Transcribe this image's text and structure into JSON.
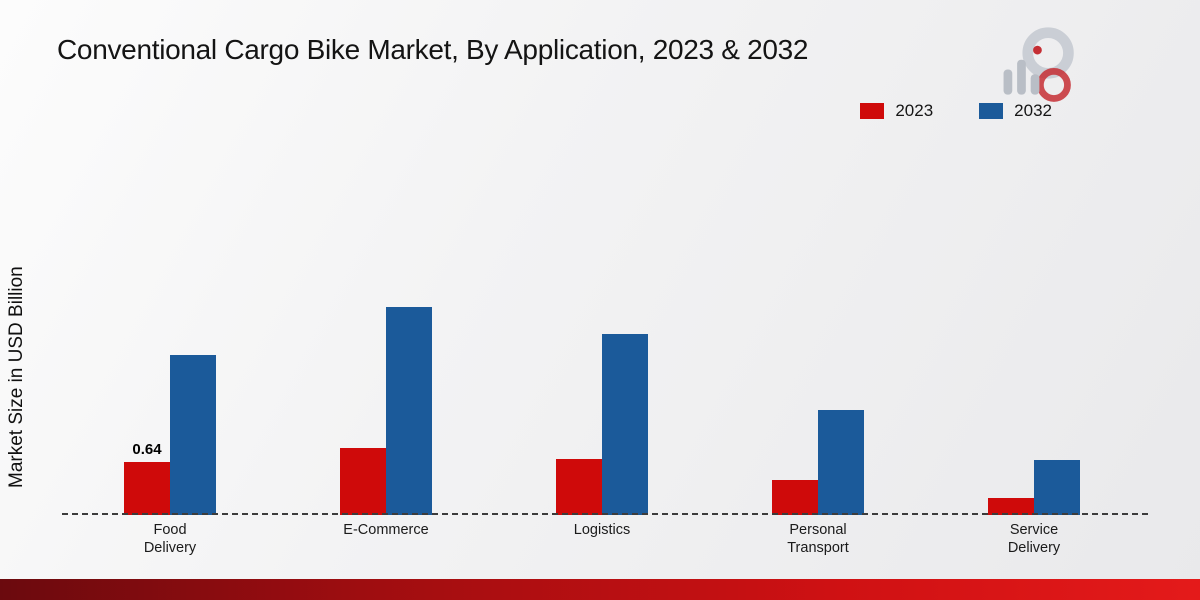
{
  "page": {
    "title": "Conventional Cargo Bike Market, By Application, 2023 & 2032"
  },
  "chart_data": {
    "type": "bar",
    "title": "Conventional Cargo Bike Market, By Application, 2023 & 2032",
    "xlabel": "",
    "ylabel": "Market Size in USD Billion",
    "categories": [
      "Food Delivery",
      "E-Commerce",
      "Logistics",
      "Personal Transport",
      "Service Delivery"
    ],
    "categories_wrapped": [
      [
        "Food",
        "Delivery"
      ],
      [
        "E-Commerce"
      ],
      [
        "Logistics"
      ],
      [
        "Personal",
        "Transport"
      ],
      [
        "Service",
        "Delivery"
      ]
    ],
    "series": [
      {
        "name": "2023",
        "color": "#cf0a0a",
        "values": [
          0.64,
          0.8,
          0.67,
          0.42,
          0.2
        ]
      },
      {
        "name": "2032",
        "color": "#1b5a9a",
        "values": [
          1.92,
          2.5,
          2.17,
          1.26,
          0.66
        ]
      }
    ],
    "ylim": [
      0,
      3.1
    ],
    "grid": false,
    "legend_position": "top-right",
    "baseline_style": "dashed",
    "data_labels": [
      {
        "series": "2023",
        "category": "Food Delivery",
        "text": "0.64"
      }
    ]
  },
  "colors": {
    "series_2023": "#cf0a0a",
    "series_2032": "#1b5a9a",
    "footer_gradient_start": "#6b0a0e",
    "footer_gradient_end": "#e41a1a",
    "background_start": "#fcfcfc",
    "background_end": "#e9e9eb"
  }
}
